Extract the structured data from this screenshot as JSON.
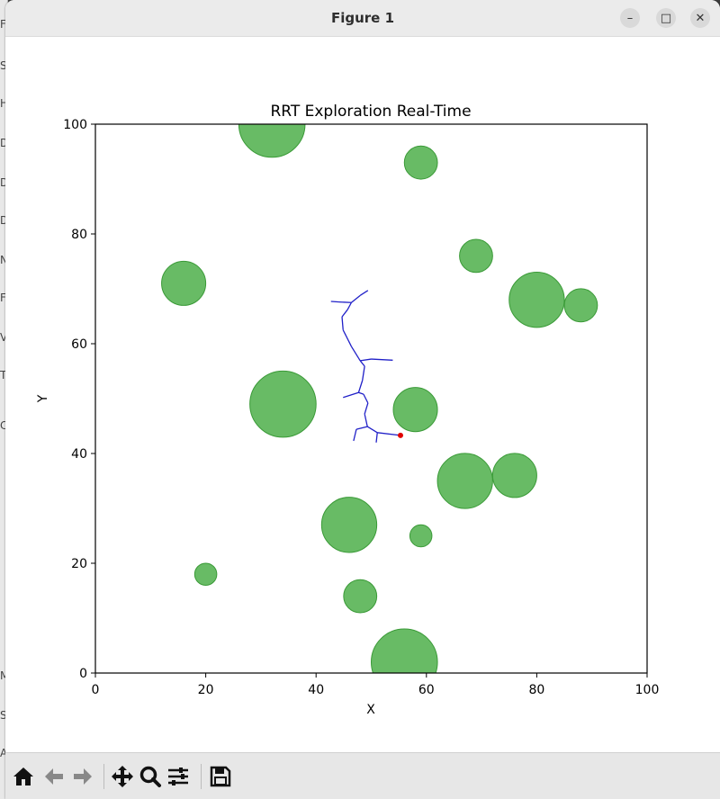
{
  "window": {
    "title": "Figure 1",
    "controls": {
      "minimize": "–",
      "maximize": "□",
      "close": "✕"
    }
  },
  "background_letters": [
    "F",
    "S",
    "H",
    "D",
    "D",
    "D",
    "N",
    "F",
    "V",
    "T",
    "C",
    "M",
    "S",
    "A"
  ],
  "toolbar": {
    "buttons": [
      {
        "name": "home",
        "icon": "home-icon",
        "enabled": true
      },
      {
        "name": "back",
        "icon": "arrow-left-icon",
        "enabled": false
      },
      {
        "name": "forward",
        "icon": "arrow-right-icon",
        "enabled": false
      },
      {
        "name": "pan",
        "icon": "move-icon",
        "enabled": true
      },
      {
        "name": "zoom",
        "icon": "magnifier-icon",
        "enabled": true
      },
      {
        "name": "configure-subplots",
        "icon": "sliders-icon",
        "enabled": true
      },
      {
        "name": "save",
        "icon": "floppy-disk-icon",
        "enabled": true
      }
    ]
  },
  "chart_data": {
    "type": "scatter",
    "title": "RRT Exploration Real-Time",
    "xlabel": "X",
    "ylabel": "Y",
    "xlim": [
      0,
      100
    ],
    "ylim": [
      0,
      100
    ],
    "xticks": [
      0,
      20,
      40,
      60,
      80,
      100
    ],
    "yticks": [
      0,
      20,
      40,
      60,
      80,
      100
    ],
    "grid": false,
    "legend": null,
    "colors": {
      "obstacle": "#4daf4a",
      "obstacle_edge": "#3a9a37",
      "tree": "#2020c8",
      "current_node": "#e00000"
    },
    "obstacles": [
      {
        "x": 32,
        "y": 100,
        "r": 6
      },
      {
        "x": 59,
        "y": 93,
        "r": 3
      },
      {
        "x": 69,
        "y": 76,
        "r": 3
      },
      {
        "x": 16,
        "y": 71,
        "r": 4
      },
      {
        "x": 80,
        "y": 68,
        "r": 5
      },
      {
        "x": 88,
        "y": 67,
        "r": 3
      },
      {
        "x": 34,
        "y": 49,
        "r": 6
      },
      {
        "x": 58,
        "y": 48,
        "r": 4
      },
      {
        "x": 67,
        "y": 35,
        "r": 5
      },
      {
        "x": 76,
        "y": 36,
        "r": 4
      },
      {
        "x": 46,
        "y": 27,
        "r": 5
      },
      {
        "x": 59,
        "y": 25,
        "r": 2
      },
      {
        "x": 20,
        "y": 18,
        "r": 2
      },
      {
        "x": 48,
        "y": 14,
        "r": 3
      },
      {
        "x": 56,
        "y": 2,
        "r": 6
      }
    ],
    "tree_edges": [
      [
        [
          55.3,
          43.3
        ],
        [
          51.1,
          43.8
        ]
      ],
      [
        [
          51.1,
          43.8
        ],
        [
          49.3,
          44.9
        ]
      ],
      [
        [
          51.1,
          43.8
        ],
        [
          50.9,
          42.0
        ]
      ],
      [
        [
          49.3,
          44.9
        ],
        [
          47.3,
          44.4
        ]
      ],
      [
        [
          47.3,
          44.4
        ],
        [
          46.8,
          42.3
        ]
      ],
      [
        [
          49.3,
          44.9
        ],
        [
          48.8,
          47.2
        ]
      ],
      [
        [
          48.8,
          47.2
        ],
        [
          49.4,
          49.2
        ]
      ],
      [
        [
          49.4,
          49.2
        ],
        [
          48.6,
          50.8
        ]
      ],
      [
        [
          48.6,
          50.8
        ],
        [
          47.7,
          51.1
        ]
      ],
      [
        [
          47.7,
          51.1
        ],
        [
          44.9,
          50.2
        ]
      ],
      [
        [
          47.7,
          51.1
        ],
        [
          48.4,
          53.3
        ]
      ],
      [
        [
          48.4,
          53.3
        ],
        [
          48.8,
          55.9
        ]
      ],
      [
        [
          48.8,
          55.9
        ],
        [
          48.0,
          56.9
        ]
      ],
      [
        [
          48.0,
          56.9
        ],
        [
          50.0,
          57.2
        ]
      ],
      [
        [
          50.0,
          57.2
        ],
        [
          53.9,
          57.0
        ]
      ],
      [
        [
          48.0,
          56.9
        ],
        [
          46.4,
          59.5
        ]
      ],
      [
        [
          46.4,
          59.5
        ],
        [
          44.9,
          62.5
        ]
      ],
      [
        [
          44.9,
          62.5
        ],
        [
          44.7,
          64.9
        ]
      ],
      [
        [
          44.7,
          64.9
        ],
        [
          45.7,
          66.2
        ]
      ],
      [
        [
          45.7,
          66.2
        ],
        [
          46.4,
          67.5
        ]
      ],
      [
        [
          46.4,
          67.5
        ],
        [
          44.2,
          67.6
        ]
      ],
      [
        [
          44.2,
          67.6
        ],
        [
          42.7,
          67.7
        ]
      ],
      [
        [
          46.4,
          67.5
        ],
        [
          48.0,
          68.8
        ]
      ],
      [
        [
          48.0,
          68.8
        ],
        [
          49.4,
          69.7
        ]
      ]
    ],
    "current_node": {
      "x": 55.3,
      "y": 43.3
    }
  }
}
